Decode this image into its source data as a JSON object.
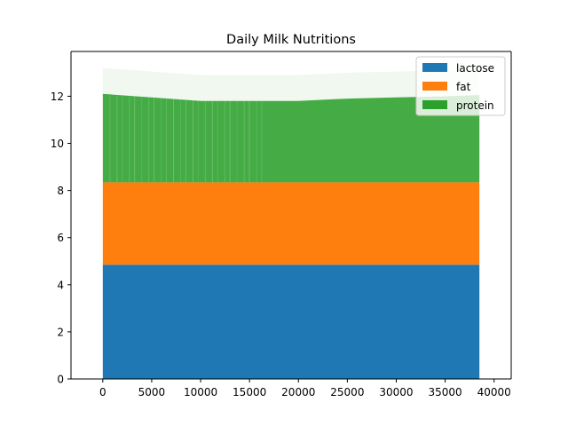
{
  "chart_data": {
    "type": "bar",
    "title": "Daily Milk Nutritions",
    "xlabel": "",
    "ylabel": "",
    "stacked": true,
    "x_range": [
      0,
      38500
    ],
    "xlim": [
      -3250,
      41750
    ],
    "ylim": [
      0,
      13.9
    ],
    "x_ticks": [
      0,
      5000,
      10000,
      15000,
      20000,
      25000,
      30000,
      35000,
      40000
    ],
    "y_ticks": [
      0,
      2,
      4,
      6,
      8,
      10,
      12
    ],
    "legend_position": "upper right",
    "grid": false,
    "series": [
      {
        "name": "lactose",
        "color": "#1f77b4",
        "base": 0,
        "value": 4.85
      },
      {
        "name": "fat",
        "color": "#ff7f0e",
        "base": 4.85,
        "value": 3.5
      },
      {
        "name": "protein",
        "color": "#2ca02c",
        "base": 8.35,
        "value": 3.6
      }
    ],
    "protein_top_profile": {
      "x": [
        0,
        5000,
        10000,
        15000,
        20000,
        25000,
        30000,
        35000,
        38500
      ],
      "top": [
        12.1,
        11.95,
        11.8,
        11.8,
        11.8,
        11.9,
        11.95,
        12.0,
        12.05
      ]
    }
  }
}
